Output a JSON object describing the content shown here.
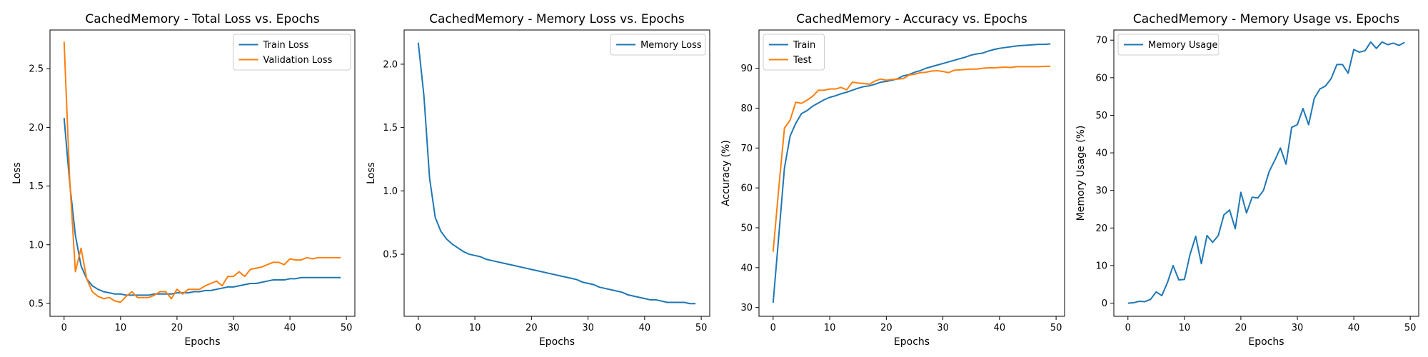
{
  "colors": {
    "blue": "#1f77b4",
    "orange": "#ff7f0e"
  },
  "chart_data": [
    {
      "type": "line",
      "title": "CachedMemory - Total Loss vs. Epochs",
      "xlabel": "Epochs",
      "ylabel": "Loss",
      "xlim": [
        -2.5,
        51.5
      ],
      "ylim": [
        0.39,
        2.83
      ],
      "xticks": [
        0,
        10,
        20,
        30,
        40,
        50
      ],
      "yticks": [
        0.5,
        1.0,
        1.5,
        2.0,
        2.5
      ],
      "tick_labels_y": [
        "0.5",
        "1.0",
        "1.5",
        "2.0",
        "2.5"
      ],
      "tick_labels_x": [
        "0",
        "10",
        "20",
        "30",
        "40",
        "50"
      ],
      "legend": "top-right",
      "x": [
        0,
        1,
        2,
        3,
        4,
        5,
        6,
        7,
        8,
        9,
        10,
        11,
        12,
        13,
        14,
        15,
        16,
        17,
        18,
        19,
        20,
        21,
        22,
        23,
        24,
        25,
        26,
        27,
        28,
        29,
        30,
        31,
        32,
        33,
        34,
        35,
        36,
        37,
        38,
        39,
        40,
        41,
        42,
        43,
        44,
        45,
        46,
        47,
        48,
        49
      ],
      "series": [
        {
          "name": "Train Loss",
          "color": "#1f77b4",
          "values": [
            2.08,
            1.52,
            1.08,
            0.82,
            0.71,
            0.65,
            0.62,
            0.6,
            0.59,
            0.58,
            0.58,
            0.57,
            0.57,
            0.57,
            0.57,
            0.57,
            0.58,
            0.58,
            0.58,
            0.58,
            0.59,
            0.59,
            0.59,
            0.6,
            0.6,
            0.61,
            0.61,
            0.62,
            0.63,
            0.64,
            0.64,
            0.65,
            0.66,
            0.67,
            0.67,
            0.68,
            0.69,
            0.7,
            0.7,
            0.7,
            0.71,
            0.71,
            0.72,
            0.72,
            0.72,
            0.72,
            0.72,
            0.72,
            0.72,
            0.72
          ]
        },
        {
          "name": "Validation Loss",
          "color": "#ff7f0e",
          "values": [
            2.73,
            1.55,
            0.77,
            0.97,
            0.71,
            0.6,
            0.56,
            0.54,
            0.55,
            0.52,
            0.51,
            0.56,
            0.6,
            0.55,
            0.55,
            0.55,
            0.57,
            0.6,
            0.6,
            0.54,
            0.62,
            0.58,
            0.62,
            0.62,
            0.62,
            0.65,
            0.67,
            0.69,
            0.65,
            0.73,
            0.73,
            0.77,
            0.73,
            0.79,
            0.8,
            0.81,
            0.83,
            0.85,
            0.85,
            0.83,
            0.88,
            0.87,
            0.87,
            0.89,
            0.88,
            0.89,
            0.89,
            0.89,
            0.89,
            0.89
          ]
        }
      ]
    },
    {
      "type": "line",
      "title": "CachedMemory - Memory Loss vs. Epochs",
      "xlabel": "Epochs",
      "ylabel": "Loss",
      "xlim": [
        -2.5,
        51.5
      ],
      "ylim": [
        0.01,
        2.27
      ],
      "xticks": [
        0,
        10,
        20,
        30,
        40,
        50
      ],
      "yticks": [
        0.5,
        1.0,
        1.5,
        2.0
      ],
      "tick_labels_y": [
        "0.5",
        "1.0",
        "1.5",
        "2.0"
      ],
      "tick_labels_x": [
        "0",
        "10",
        "20",
        "30",
        "40",
        "50"
      ],
      "legend": "top-right",
      "x": [
        0,
        1,
        2,
        3,
        4,
        5,
        6,
        7,
        8,
        9,
        10,
        11,
        12,
        13,
        14,
        15,
        16,
        17,
        18,
        19,
        20,
        21,
        22,
        23,
        24,
        25,
        26,
        27,
        28,
        29,
        30,
        31,
        32,
        33,
        34,
        35,
        36,
        37,
        38,
        39,
        40,
        41,
        42,
        43,
        44,
        45,
        46,
        47,
        48,
        49
      ],
      "series": [
        {
          "name": "Memory Loss",
          "color": "#1f77b4",
          "values": [
            2.17,
            1.75,
            1.1,
            0.79,
            0.68,
            0.62,
            0.58,
            0.55,
            0.52,
            0.5,
            0.49,
            0.48,
            0.46,
            0.45,
            0.44,
            0.43,
            0.42,
            0.41,
            0.4,
            0.39,
            0.38,
            0.37,
            0.36,
            0.35,
            0.34,
            0.33,
            0.32,
            0.31,
            0.3,
            0.28,
            0.27,
            0.26,
            0.24,
            0.23,
            0.22,
            0.21,
            0.2,
            0.18,
            0.17,
            0.16,
            0.15,
            0.14,
            0.14,
            0.13,
            0.12,
            0.12,
            0.12,
            0.12,
            0.11,
            0.11
          ]
        }
      ]
    },
    {
      "type": "line",
      "title": "CachedMemory - Accuracy vs. Epochs",
      "xlabel": "Epochs",
      "ylabel": "Accuracy (%)",
      "xlim": [
        -2.5,
        51.5
      ],
      "ylim": [
        27.8,
        99.6
      ],
      "xticks": [
        0,
        10,
        20,
        30,
        40,
        50
      ],
      "yticks": [
        30,
        40,
        50,
        60,
        70,
        80,
        90
      ],
      "tick_labels_y": [
        "30",
        "40",
        "50",
        "60",
        "70",
        "80",
        "90"
      ],
      "tick_labels_x": [
        "0",
        "10",
        "20",
        "30",
        "40",
        "50"
      ],
      "legend": "top-left",
      "x": [
        0,
        1,
        2,
        3,
        4,
        5,
        6,
        7,
        8,
        9,
        10,
        11,
        12,
        13,
        14,
        15,
        16,
        17,
        18,
        19,
        20,
        21,
        22,
        23,
        24,
        25,
        26,
        27,
        28,
        29,
        30,
        31,
        32,
        33,
        34,
        35,
        36,
        37,
        38,
        39,
        40,
        41,
        42,
        43,
        44,
        45,
        46,
        47,
        48,
        49
      ],
      "series": [
        {
          "name": "Train",
          "color": "#1f77b4",
          "values": [
            31.2,
            48.0,
            65.0,
            73.0,
            76.2,
            78.6,
            79.4,
            80.5,
            81.3,
            82.1,
            82.7,
            83.1,
            83.6,
            84.0,
            84.5,
            85.0,
            85.4,
            85.6,
            86.0,
            86.5,
            86.7,
            87.0,
            87.4,
            88.1,
            88.4,
            89.0,
            89.4,
            90.0,
            90.4,
            90.8,
            91.2,
            91.6,
            92.0,
            92.4,
            92.8,
            93.3,
            93.6,
            93.8,
            94.3,
            94.7,
            95.0,
            95.2,
            95.4,
            95.6,
            95.7,
            95.8,
            95.9,
            96.0,
            96.0,
            96.1
          ]
        },
        {
          "name": "Test",
          "color": "#ff7f0e",
          "values": [
            44.0,
            60.0,
            75.0,
            77.0,
            81.5,
            81.2,
            82.0,
            83.0,
            84.5,
            84.5,
            84.8,
            84.8,
            85.2,
            84.6,
            86.5,
            86.3,
            86.2,
            86.0,
            86.8,
            87.3,
            87.0,
            87.2,
            87.3,
            87.4,
            88.3,
            88.5,
            88.9,
            89.0,
            89.3,
            89.4,
            89.2,
            88.9,
            89.5,
            89.6,
            89.7,
            89.8,
            89.8,
            90.0,
            90.1,
            90.1,
            90.2,
            90.3,
            90.2,
            90.4,
            90.4,
            90.4,
            90.4,
            90.4,
            90.5,
            90.5
          ]
        }
      ]
    },
    {
      "type": "line",
      "title": "CachedMemory - Memory Usage vs. Epochs",
      "xlabel": "Epochs",
      "ylabel": "Memory Usage (%)",
      "xlim": [
        -2.5,
        51.5
      ],
      "ylim": [
        -3.5,
        72.7
      ],
      "xticks": [
        0,
        10,
        20,
        30,
        40,
        50
      ],
      "yticks": [
        0,
        10,
        20,
        30,
        40,
        50,
        60,
        70
      ],
      "tick_labels_y": [
        "0",
        "10",
        "20",
        "30",
        "40",
        "50",
        "60",
        "70"
      ],
      "tick_labels_x": [
        "0",
        "10",
        "20",
        "30",
        "40",
        "50"
      ],
      "legend": "top-left",
      "x": [
        0,
        1,
        2,
        3,
        4,
        5,
        6,
        7,
        8,
        9,
        10,
        11,
        12,
        13,
        14,
        15,
        16,
        17,
        18,
        19,
        20,
        21,
        22,
        23,
        24,
        25,
        26,
        27,
        28,
        29,
        30,
        31,
        32,
        33,
        34,
        35,
        36,
        37,
        38,
        39,
        40,
        41,
        42,
        43,
        44,
        45,
        46,
        47,
        48,
        49
      ],
      "series": [
        {
          "name": "Memory Usage",
          "color": "#1f77b4",
          "values": [
            0.0,
            0.1,
            0.5,
            0.4,
            1.0,
            3.0,
            2.0,
            5.5,
            10.0,
            6.2,
            6.3,
            13.0,
            17.8,
            10.5,
            18.0,
            16.2,
            18.0,
            23.5,
            24.8,
            19.8,
            29.5,
            24.0,
            28.2,
            28.0,
            30.0,
            35.0,
            38.0,
            41.3,
            37.0,
            46.8,
            47.5,
            51.8,
            47.5,
            54.5,
            57.0,
            57.8,
            59.8,
            63.5,
            63.5,
            61.2,
            67.5,
            66.8,
            67.2,
            69.5,
            67.8,
            69.5,
            68.8,
            69.2,
            68.6,
            69.4
          ]
        }
      ]
    }
  ]
}
